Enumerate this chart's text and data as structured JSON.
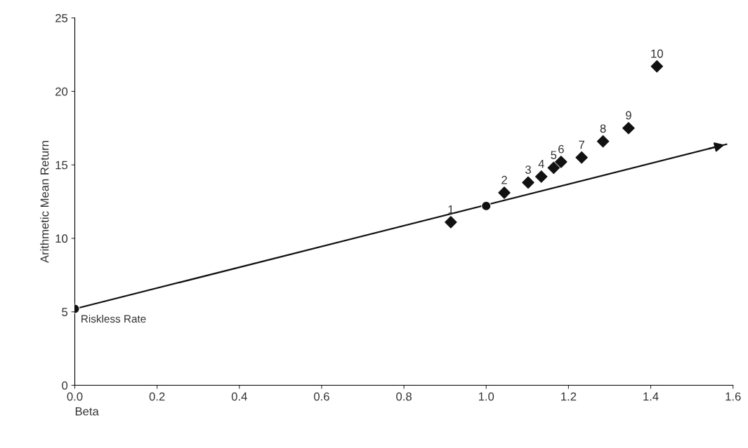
{
  "chart_data": {
    "type": "scatter",
    "xlabel": "Beta",
    "ylabel": "Arithmetic Mean Return",
    "xlim": [
      0,
      1.6
    ],
    "ylim": [
      0,
      25
    ],
    "xticks": [
      {
        "value": 0,
        "label": "0.0"
      },
      0.2,
      0.4,
      0.6,
      0.8,
      {
        "value": 1,
        "label": "1.0"
      },
      1.2,
      1.4,
      1.6
    ],
    "yticks": [
      0,
      5,
      10,
      15,
      20,
      25
    ],
    "grid": false,
    "legend": false,
    "series": [
      {
        "type": "line",
        "color": "#111111",
        "x": [
          0,
          1.584
        ],
        "values": [
          5.2,
          16.4
        ],
        "line_style": "solid"
      },
      {
        "type": "scatter",
        "color": "#111111",
        "marker": "diamond",
        "x": [
          0.914,
          1.044,
          1.102,
          1.134,
          1.164,
          1.182,
          1.232,
          1.284,
          1.346,
          1.415
        ],
        "values": [
          11.1,
          13.1,
          13.8,
          14.2,
          14.8,
          15.2,
          15.5,
          16.6,
          17.5,
          21.7
        ]
      },
      {
        "color": "#111111",
        "marker": "circle",
        "x": [
          0,
          1.0
        ],
        "values": [
          5.2,
          12.2
        ]
      }
    ],
    "annotations": [
      {
        "text": "1",
        "x": 0.914,
        "y": 11.1
      },
      {
        "text": "2",
        "x": 1.044,
        "y": 13.1
      },
      {
        "text": "3",
        "x": 1.102,
        "y": 13.8
      },
      {
        "text": "4",
        "x": 1.134,
        "y": 14.2
      },
      {
        "text": "5",
        "x": 1.164,
        "y": 14.8
      },
      {
        "text": "6",
        "x": 1.182,
        "y": 15.2
      },
      {
        "text": "7",
        "x": 1.232,
        "y": 15.5
      },
      {
        "text": "8",
        "x": 1.284,
        "y": 16.6
      },
      {
        "text": "9",
        "x": 1.346,
        "y": 17.5
      },
      {
        "text": "10",
        "x": 1.415,
        "y": 21.7
      },
      {
        "text": "Riskless Rate",
        "x": 0,
        "y": 5.2
      }
    ]
  }
}
